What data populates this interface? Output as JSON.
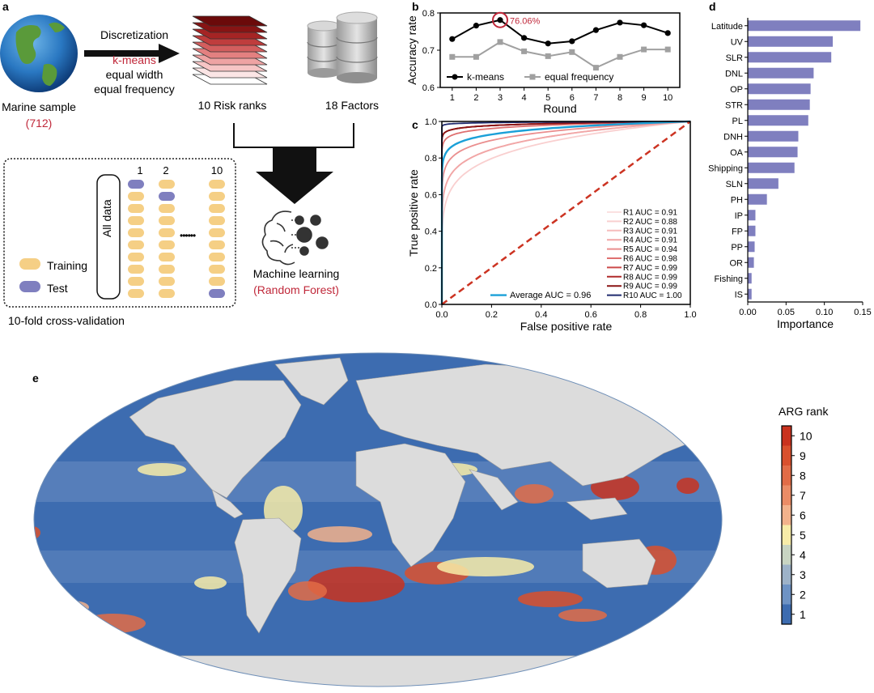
{
  "panels": {
    "a": "a",
    "b": "b",
    "c": "c",
    "d": "d",
    "e": "e"
  },
  "workflow": {
    "sample_label": "Marine sample",
    "sample_count": "(712)",
    "step_title": "Discretization",
    "methods": [
      "k-means",
      "equal width",
      "equal frequency"
    ],
    "risk_ranks_label": "10 Risk ranks",
    "factors_label": "18 Factors",
    "ml_label": "Machine learning",
    "ml_method": "(Random Forest)",
    "cv_label": "10-fold cross-validation",
    "all_data_label": "All data",
    "fold_labels": [
      "1",
      "2",
      "10"
    ],
    "dots": "••••••",
    "legend_training": "Training",
    "legend_test": "Test"
  },
  "colors": {
    "kmeans_highlight": "#c0283a",
    "test_fill": "#7f7fbf",
    "training_fill": "#f5cf85",
    "bar_fill": "#7f7fbf",
    "ocean_low": "#3d6cb0",
    "ocean_high": "#c93a28",
    "land": "#dcdcdc"
  },
  "chart_data": [
    {
      "type": "line",
      "panel": "b",
      "xlabel": "Round",
      "ylabel": "Accuracy rate",
      "x": [
        1,
        2,
        3,
        4,
        5,
        6,
        7,
        8,
        9,
        10
      ],
      "xlim": [
        0.5,
        10.5
      ],
      "ylim": [
        0.6,
        0.8
      ],
      "yticks": [
        0.6,
        0.7,
        0.8
      ],
      "yticklabels": [
        "0.6",
        "0.7",
        "0.8"
      ],
      "series": [
        {
          "name": "k-means",
          "color": "#000000",
          "marker": "circle",
          "values": [
            0.73,
            0.766,
            0.781,
            0.733,
            0.718,
            0.724,
            0.754,
            0.774,
            0.767,
            0.746
          ]
        },
        {
          "name": "equal frequency",
          "color": "#a0a0a0",
          "marker": "square",
          "values": [
            0.682,
            0.682,
            0.722,
            0.697,
            0.684,
            0.695,
            0.653,
            0.682,
            0.702,
            0.702
          ]
        }
      ],
      "annotation": "76.06%",
      "legend": "bottom"
    },
    {
      "type": "line",
      "panel": "c",
      "xlabel": "False positive rate",
      "ylabel": "True positive rate",
      "xlim": [
        0,
        1
      ],
      "ylim": [
        0,
        1
      ],
      "ticks": [
        "0.0",
        "0.2",
        "0.4",
        "0.6",
        "0.8",
        "1.0"
      ],
      "series": [
        {
          "name": "R1 AUC = 0.91",
          "auc": 0.91,
          "color": "#fbe1e1"
        },
        {
          "name": "R2 AUC = 0.88",
          "auc": 0.88,
          "color": "#f9cfcf"
        },
        {
          "name": "R3 AUC = 0.91",
          "auc": 0.91,
          "color": "#f6bcbc"
        },
        {
          "name": "R4 AUC = 0.91",
          "auc": 0.91,
          "color": "#f1a6a6"
        },
        {
          "name": "R5 AUC = 0.94",
          "auc": 0.94,
          "color": "#ea8e8e"
        },
        {
          "name": "R6 AUC = 0.98",
          "auc": 0.98,
          "color": "#df7070"
        },
        {
          "name": "R7 AUC = 0.99",
          "auc": 0.99,
          "color": "#cc4a4a"
        },
        {
          "name": "R8 AUC = 0.99",
          "auc": 0.99,
          "color": "#b02a2a"
        },
        {
          "name": "R9 AUC = 0.99",
          "auc": 0.99,
          "color": "#8a1414"
        },
        {
          "name": "R10 AUC = 1.00",
          "auc": 1.0,
          "color": "#1f2a6e"
        },
        {
          "name": "Average AUC = 0.96",
          "auc": 0.96,
          "color": "#1aa0d8"
        }
      ],
      "diagonal_color": "#cc3322",
      "legend": "bottom-right"
    },
    {
      "type": "bar",
      "panel": "d",
      "orientation": "horizontal",
      "xlabel": "Importance",
      "categories": [
        "Latitude",
        "UV",
        "SLR",
        "DNL",
        "OP",
        "STR",
        "PL",
        "DNH",
        "OA",
        "Shipping",
        "SLN",
        "PH",
        "IP",
        "FP",
        "PP",
        "OR",
        "Fishing",
        "IS"
      ],
      "values": [
        0.147,
        0.111,
        0.109,
        0.086,
        0.082,
        0.081,
        0.079,
        0.066,
        0.065,
        0.061,
        0.04,
        0.025,
        0.01,
        0.01,
        0.009,
        0.008,
        0.005,
        0.005
      ],
      "xlim": [
        0,
        0.15
      ],
      "xticks": [
        "0.00",
        "0.05",
        "0.10",
        "0.15"
      ]
    }
  ],
  "map": {
    "legend_title": "ARG rank",
    "legend_ticks": [
      "10",
      "9",
      "8",
      "7",
      "6",
      "5",
      "4",
      "3",
      "2",
      "1"
    ],
    "legend_colors": [
      "#c9321e",
      "#d9502d",
      "#e26c47",
      "#eb8c66",
      "#f2b28c",
      "#f7eca8",
      "#c8d4c2",
      "#9db2c8",
      "#6e93c4",
      "#3d6cb0"
    ]
  }
}
